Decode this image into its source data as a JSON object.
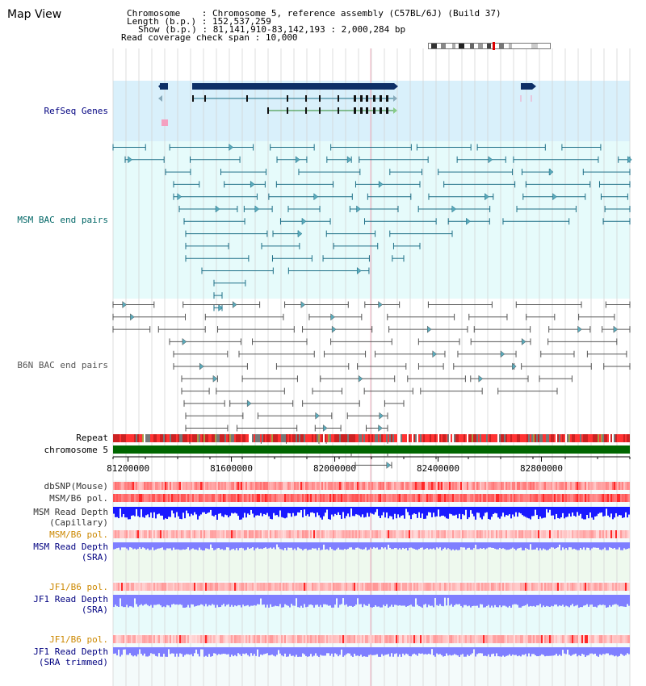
{
  "view_title": "Map View",
  "info": {
    "chromosome_label": "Chromosome",
    "chromosome_value": ": Chromosome 5, reference assembly (C57BL/6J) (Build 37)",
    "length_label": "Length (b.p.)",
    "length_value": ": 152,537,259",
    "show_label": "Show (b.p.)",
    "show_value": ": 81,141,910-83,142,193 : 2,000,284 bp",
    "coverage_label": "Read coverage check span",
    "coverage_value": ": 10,000"
  },
  "tracks": {
    "refseq": "RefSeq Genes",
    "msm_bac": "MSM BAC end pairs",
    "b6n_bac": "B6N BAC end pairs",
    "repeat": "Repeat",
    "chromosome": "chromosome 5",
    "dbsnp": "dbSNP(Mouse)",
    "msm_b6_pol": "MSM/B6 pol.",
    "msm_depth_cap_1": "MSM Read Depth",
    "msm_depth_cap_2": "(Capillary)",
    "msm_b6_pol_2": "MSM/B6 pol.",
    "msm_depth_sra_1": "MSM Read Depth",
    "msm_depth_sra_2": "(SRA)",
    "jf1_b6_pol": "JF1/B6 pol.",
    "jf1_depth_sra_1": "JF1 Read Depth",
    "jf1_depth_sra_2": "(SRA)",
    "jf1_b6_pol_2": "JF1/B6 pol.",
    "jf1_depth_trim_1": "JF1 Read Depth",
    "jf1_depth_trim_2": "(SRA trimmed)"
  },
  "axis": {
    "ticks": [
      "81200000",
      "81600000",
      "82000000",
      "82400000",
      "82800000"
    ],
    "tick_values": [
      81200000,
      81600000,
      82000000,
      82400000,
      82800000
    ],
    "range": [
      81141910,
      83142193
    ]
  },
  "colors": {
    "refseq_bg": "#d9f0fb",
    "msm_bg": "#e6fbfb",
    "chrom_bar": "#006600",
    "gene_dark": "#0d2f66",
    "msm_line": "#1c6e86",
    "b6n_line": "#555555",
    "depth_blue": "#1a1aff",
    "depth_light": "#7f7fff",
    "label_navy": "#000080",
    "label_orange": "#cc8800",
    "label_teal": "#006666",
    "label_gray": "#555555"
  }
}
